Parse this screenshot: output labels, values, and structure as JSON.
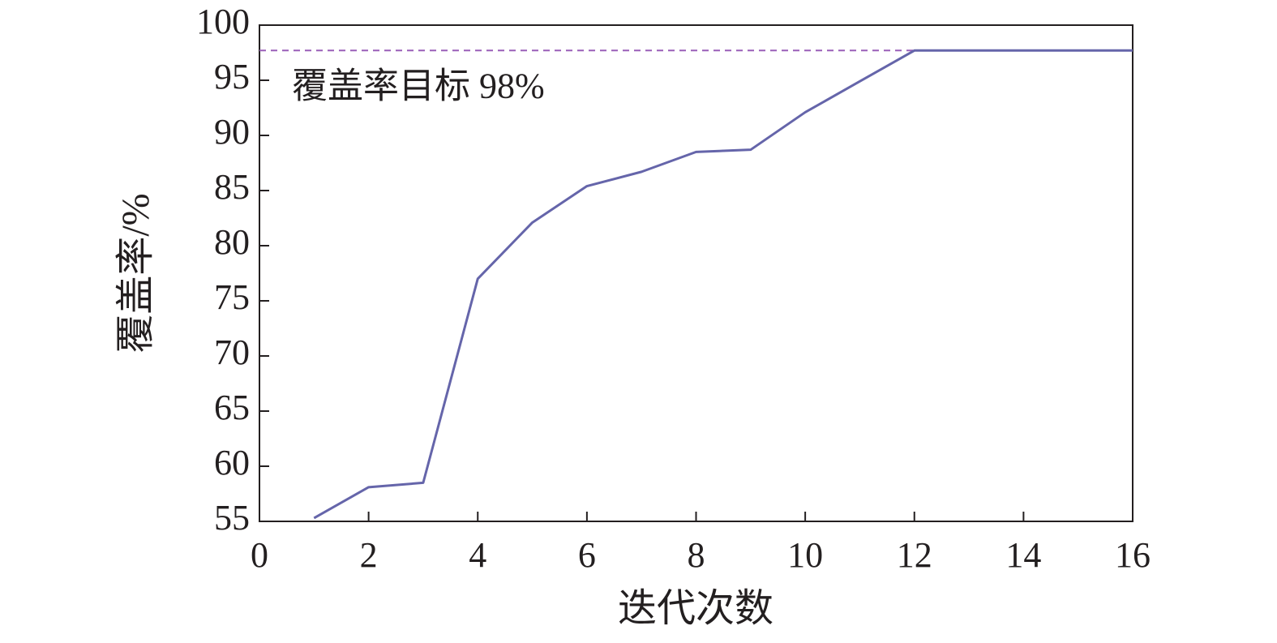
{
  "chart_data": {
    "type": "line",
    "x_label": "迭代次数",
    "y_label": "覆盖率/%",
    "x": [
      1,
      2,
      3,
      4,
      5,
      6,
      7,
      8,
      9,
      10,
      11,
      12,
      16
    ],
    "series": [
      {
        "name": "覆盖率",
        "color": "#6565aa",
        "values": [
          55.3,
          58.1,
          58.5,
          77.0,
          82.1,
          85.4,
          86.7,
          88.5,
          88.7,
          92.1,
          94.9,
          97.7,
          97.7
        ]
      }
    ],
    "reference_line": {
      "value": 97.7,
      "label": "覆盖率目标 98%",
      "color": "#9a5fb8"
    },
    "xlim": [
      0,
      16
    ],
    "xticks": [
      0,
      2,
      4,
      6,
      8,
      10,
      12,
      14,
      16
    ],
    "ylim": [
      55,
      100
    ],
    "yticks": [
      55,
      60,
      65,
      70,
      75,
      80,
      85,
      90,
      95,
      100
    ]
  }
}
